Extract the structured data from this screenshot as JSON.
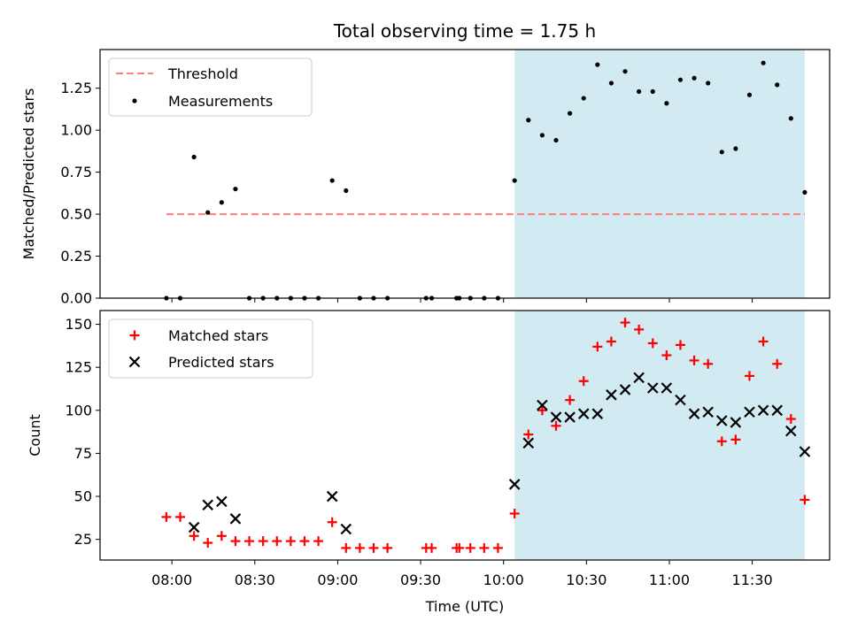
{
  "chart_data": {
    "title": "Total observing time = 1.75 h",
    "xlabel": "Time (UTC)",
    "x_ticks": [
      "08:00",
      "08:30",
      "09:00",
      "09:30",
      "10:00",
      "10:30",
      "11:00",
      "11:30"
    ],
    "shaded_interval": [
      "10:04",
      "11:49"
    ],
    "colors": {
      "shade": "#add8e6",
      "threshold": "#ff7f7f",
      "measurements": "#000000",
      "matched": "#ff0000",
      "predicted": "#000000"
    },
    "panels": [
      {
        "type": "scatter",
        "ylabel": "Matched/Predicted stars",
        "ylim": [
          0,
          1.48
        ],
        "y_ticks": [
          "0.00",
          "0.25",
          "0.50",
          "0.75",
          "1.00",
          "1.25"
        ],
        "legend_position": "top-left",
        "threshold": {
          "name": "Threshold",
          "y": 0.5,
          "x_range": [
            "07:58",
            "11:49"
          ]
        },
        "series": [
          {
            "name": "Measurements",
            "x": [
              "07:58",
              "08:03",
              "08:08",
              "08:13",
              "08:18",
              "08:23",
              "08:28",
              "08:33",
              "08:38",
              "08:43",
              "08:48",
              "08:53",
              "08:58",
              "09:03",
              "09:08",
              "09:13",
              "09:18",
              "09:32",
              "09:34",
              "09:43",
              "09:44",
              "09:48",
              "09:53",
              "09:58",
              "10:04",
              "10:09",
              "10:14",
              "10:19",
              "10:24",
              "10:29",
              "10:34",
              "10:39",
              "10:44",
              "10:49",
              "10:54",
              "10:59",
              "11:04",
              "11:09",
              "11:14",
              "11:19",
              "11:24",
              "11:29",
              "11:34",
              "11:39",
              "11:44",
              "11:49"
            ],
            "y": [
              0,
              0,
              0.84,
              0.51,
              0.57,
              0.65,
              0,
              0,
              0,
              0,
              0,
              0,
              0.7,
              0.64,
              0,
              0,
              0,
              0,
              0,
              0,
              0,
              0,
              0,
              0,
              0.7,
              1.06,
              0.97,
              0.94,
              1.1,
              1.19,
              1.39,
              1.28,
              1.35,
              1.23,
              1.23,
              1.16,
              1.3,
              1.31,
              1.28,
              0.87,
              0.89,
              1.21,
              1.4,
              1.27,
              1.07,
              0.63
            ]
          }
        ]
      },
      {
        "type": "scatter",
        "ylabel": "Count",
        "ylim": [
          13,
          158
        ],
        "y_ticks": [
          "25",
          "50",
          "75",
          "100",
          "125",
          "150"
        ],
        "legend_position": "top-left",
        "series": [
          {
            "name": "Matched stars",
            "marker": "+",
            "x": [
              "07:58",
              "08:03",
              "08:08",
              "08:13",
              "08:18",
              "08:23",
              "08:28",
              "08:33",
              "08:38",
              "08:43",
              "08:48",
              "08:53",
              "08:58",
              "09:03",
              "09:08",
              "09:13",
              "09:18",
              "09:32",
              "09:34",
              "09:43",
              "09:44",
              "09:48",
              "09:53",
              "09:58",
              "10:04",
              "10:09",
              "10:14",
              "10:19",
              "10:24",
              "10:29",
              "10:34",
              "10:39",
              "10:44",
              "10:49",
              "10:54",
              "10:59",
              "11:04",
              "11:09",
              "11:14",
              "11:19",
              "11:24",
              "11:29",
              "11:34",
              "11:39",
              "11:44",
              "11:49"
            ],
            "y": [
              38,
              38,
              27,
              23,
              27,
              24,
              24,
              24,
              24,
              24,
              24,
              24,
              35,
              20,
              20,
              20,
              20,
              20,
              20,
              20,
              20,
              20,
              20,
              20,
              40,
              86,
              100,
              91,
              106,
              117,
              137,
              140,
              151,
              147,
              139,
              132,
              138,
              129,
              127,
              82,
              83,
              120,
              140,
              127,
              95,
              48
            ]
          },
          {
            "name": "Predicted stars",
            "marker": "x",
            "x": [
              "08:08",
              "08:13",
              "08:18",
              "08:23",
              "08:58",
              "09:03",
              "10:04",
              "10:09",
              "10:14",
              "10:19",
              "10:24",
              "10:29",
              "10:34",
              "10:39",
              "10:44",
              "10:49",
              "10:54",
              "10:59",
              "11:04",
              "11:09",
              "11:14",
              "11:19",
              "11:24",
              "11:29",
              "11:34",
              "11:39",
              "11:44",
              "11:49"
            ],
            "y": [
              32,
              45,
              47,
              37,
              50,
              31,
              57,
              81,
              103,
              96,
              96,
              98,
              98,
              109,
              112,
              119,
              113,
              113,
              106,
              98,
              99,
              94,
              93,
              99,
              100,
              100,
              88,
              76
            ]
          }
        ]
      }
    ]
  }
}
